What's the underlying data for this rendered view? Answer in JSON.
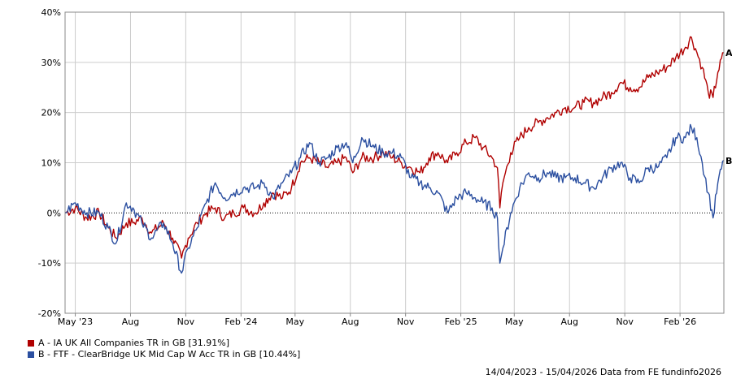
{
  "chart_data": {
    "type": "line",
    "y_axis": {
      "min": -20,
      "max": 40,
      "step": 10,
      "unit": "%",
      "tick_labels": [
        "-20%",
        "-10%",
        "0%",
        "10%",
        "20%",
        "30%",
        "40%"
      ]
    },
    "x_axis": {
      "start": "2023-04-14",
      "end": "2026-04-15",
      "ticks": [
        {
          "date": "2023-05-01",
          "label": "May '23"
        },
        {
          "date": "2023-08-01",
          "label": "Aug"
        },
        {
          "date": "2023-11-01",
          "label": "Nov"
        },
        {
          "date": "2024-02-01",
          "label": "Feb '24"
        },
        {
          "date": "2024-05-01",
          "label": "May"
        },
        {
          "date": "2024-08-01",
          "label": "Aug"
        },
        {
          "date": "2024-11-01",
          "label": "Nov"
        },
        {
          "date": "2025-02-01",
          "label": "Feb '25"
        },
        {
          "date": "2025-05-01",
          "label": "May"
        },
        {
          "date": "2025-08-01",
          "label": "Aug"
        },
        {
          "date": "2025-11-01",
          "label": "Nov"
        },
        {
          "date": "2026-02-01",
          "label": "Feb '26"
        }
      ]
    },
    "grid": true,
    "zero_line": "dotted",
    "series": [
      {
        "id": "A",
        "name": "A - IA UK All Companies TR in GB [31.91%]",
        "color": "#b00000",
        "end_label": "A",
        "points": [
          [
            "2023-04-14",
            0
          ],
          [
            "2023-05-01",
            1
          ],
          [
            "2023-05-20",
            -1
          ],
          [
            "2023-06-10",
            0
          ],
          [
            "2023-06-25",
            -3
          ],
          [
            "2023-07-08",
            -5
          ],
          [
            "2023-07-25",
            -2
          ],
          [
            "2023-08-05",
            -2
          ],
          [
            "2023-08-20",
            -1
          ],
          [
            "2023-09-05",
            -4
          ],
          [
            "2023-09-25",
            -2
          ],
          [
            "2023-10-10",
            -5
          ],
          [
            "2023-10-25",
            -9
          ],
          [
            "2023-11-05",
            -5
          ],
          [
            "2023-11-20",
            -2
          ],
          [
            "2023-12-05",
            0
          ],
          [
            "2023-12-20",
            1
          ],
          [
            "2024-01-05",
            -1
          ],
          [
            "2024-01-20",
            0
          ],
          [
            "2024-02-05",
            1
          ],
          [
            "2024-02-25",
            0
          ],
          [
            "2024-03-10",
            2
          ],
          [
            "2024-03-25",
            4
          ],
          [
            "2024-04-10",
            3
          ],
          [
            "2024-04-25",
            5
          ],
          [
            "2024-05-10",
            10
          ],
          [
            "2024-05-25",
            11
          ],
          [
            "2024-06-10",
            10
          ],
          [
            "2024-06-25",
            9
          ],
          [
            "2024-07-10",
            10
          ],
          [
            "2024-07-25",
            11
          ],
          [
            "2024-08-05",
            8
          ],
          [
            "2024-08-20",
            11
          ],
          [
            "2024-09-10",
            11
          ],
          [
            "2024-09-25",
            12
          ],
          [
            "2024-10-10",
            11
          ],
          [
            "2024-10-25",
            10
          ],
          [
            "2024-11-10",
            9
          ],
          [
            "2024-11-25",
            8
          ],
          [
            "2024-12-10",
            11
          ],
          [
            "2024-12-25",
            12
          ],
          [
            "2025-01-10",
            10
          ],
          [
            "2025-01-25",
            12
          ],
          [
            "2025-02-10",
            14
          ],
          [
            "2025-02-25",
            15
          ],
          [
            "2025-03-10",
            13
          ],
          [
            "2025-03-25",
            11
          ],
          [
            "2025-04-03",
            9
          ],
          [
            "2025-04-07",
            1
          ],
          [
            "2025-04-12",
            6
          ],
          [
            "2025-04-25",
            12
          ],
          [
            "2025-05-10",
            15
          ],
          [
            "2025-05-25",
            17
          ],
          [
            "2025-06-10",
            18
          ],
          [
            "2025-06-25",
            19
          ],
          [
            "2025-07-10",
            20
          ],
          [
            "2025-07-25",
            21
          ],
          [
            "2025-08-10",
            21
          ],
          [
            "2025-08-25",
            22
          ],
          [
            "2025-09-10",
            22
          ],
          [
            "2025-09-25",
            23
          ],
          [
            "2025-10-10",
            24
          ],
          [
            "2025-10-25",
            26
          ],
          [
            "2025-11-10",
            25
          ],
          [
            "2025-11-25",
            25
          ],
          [
            "2025-12-10",
            27
          ],
          [
            "2025-12-25",
            28
          ],
          [
            "2026-01-10",
            29
          ],
          [
            "2026-01-25",
            31
          ],
          [
            "2026-02-10",
            33
          ],
          [
            "2026-02-20",
            35
          ],
          [
            "2026-03-01",
            32
          ],
          [
            "2026-03-10",
            29
          ],
          [
            "2026-03-20",
            24
          ],
          [
            "2026-03-28",
            23
          ],
          [
            "2026-04-05",
            28
          ],
          [
            "2026-04-15",
            31.91
          ]
        ]
      },
      {
        "id": "B",
        "name": "B - FTF - ClearBridge UK Mid Cap W Acc TR in GB [10.44%]",
        "color": "#2b4fa0",
        "end_label": "B",
        "points": [
          [
            "2023-04-14",
            0
          ],
          [
            "2023-05-01",
            2
          ],
          [
            "2023-05-20",
            0
          ],
          [
            "2023-06-10",
            0
          ],
          [
            "2023-06-25",
            -3
          ],
          [
            "2023-07-08",
            -6
          ],
          [
            "2023-07-25",
            2
          ],
          [
            "2023-08-05",
            1
          ],
          [
            "2023-08-20",
            -2
          ],
          [
            "2023-09-05",
            -5
          ],
          [
            "2023-09-25",
            -2
          ],
          [
            "2023-10-10",
            -6
          ],
          [
            "2023-10-25",
            -12
          ],
          [
            "2023-11-05",
            -7
          ],
          [
            "2023-11-20",
            -3
          ],
          [
            "2023-12-05",
            2
          ],
          [
            "2023-12-20",
            6
          ],
          [
            "2024-01-05",
            3
          ],
          [
            "2024-01-20",
            4
          ],
          [
            "2024-02-05",
            5
          ],
          [
            "2024-02-25",
            5
          ],
          [
            "2024-03-10",
            6
          ],
          [
            "2024-03-25",
            3
          ],
          [
            "2024-04-10",
            6
          ],
          [
            "2024-04-25",
            8
          ],
          [
            "2024-05-10",
            11
          ],
          [
            "2024-05-25",
            14
          ],
          [
            "2024-06-10",
            10
          ],
          [
            "2024-06-25",
            11
          ],
          [
            "2024-07-10",
            13
          ],
          [
            "2024-07-25",
            14
          ],
          [
            "2024-08-05",
            10
          ],
          [
            "2024-08-20",
            15
          ],
          [
            "2024-09-10",
            13
          ],
          [
            "2024-09-25",
            12
          ],
          [
            "2024-10-10",
            12
          ],
          [
            "2024-10-25",
            11
          ],
          [
            "2024-11-10",
            7
          ],
          [
            "2024-11-25",
            6
          ],
          [
            "2024-12-10",
            5
          ],
          [
            "2024-12-25",
            4
          ],
          [
            "2025-01-10",
            0
          ],
          [
            "2025-01-25",
            3
          ],
          [
            "2025-02-10",
            4
          ],
          [
            "2025-02-25",
            3
          ],
          [
            "2025-03-10",
            2
          ],
          [
            "2025-03-25",
            1
          ],
          [
            "2025-04-03",
            -1
          ],
          [
            "2025-04-07",
            -10
          ],
          [
            "2025-04-12",
            -7
          ],
          [
            "2025-04-25",
            0
          ],
          [
            "2025-05-10",
            5
          ],
          [
            "2025-05-25",
            8
          ],
          [
            "2025-06-10",
            7
          ],
          [
            "2025-06-25",
            8
          ],
          [
            "2025-07-10",
            7
          ],
          [
            "2025-07-25",
            7
          ],
          [
            "2025-08-10",
            7
          ],
          [
            "2025-08-25",
            6
          ],
          [
            "2025-09-10",
            5
          ],
          [
            "2025-09-25",
            7
          ],
          [
            "2025-10-10",
            9
          ],
          [
            "2025-10-25",
            10
          ],
          [
            "2025-11-10",
            7
          ],
          [
            "2025-11-25",
            6
          ],
          [
            "2025-12-10",
            9
          ],
          [
            "2025-12-25",
            9
          ],
          [
            "2026-01-10",
            11
          ],
          [
            "2026-01-25",
            15
          ],
          [
            "2026-02-10",
            15
          ],
          [
            "2026-02-20",
            17
          ],
          [
            "2026-03-01",
            15
          ],
          [
            "2026-03-10",
            10
          ],
          [
            "2026-03-20",
            4
          ],
          [
            "2026-03-28",
            -1
          ],
          [
            "2026-04-05",
            6
          ],
          [
            "2026-04-15",
            10.44
          ]
        ]
      }
    ]
  },
  "legend": {
    "items": [
      {
        "text": "A - IA UK All Companies TR in GB [31.91%]",
        "color": "#b00000"
      },
      {
        "text": "B - FTF - ClearBridge UK Mid Cap W Acc TR in GB [10.44%]",
        "color": "#2b4fa0"
      }
    ]
  },
  "footer": {
    "text": "14/04/2023 - 15/04/2026 Data from FE fundinfo2026"
  }
}
